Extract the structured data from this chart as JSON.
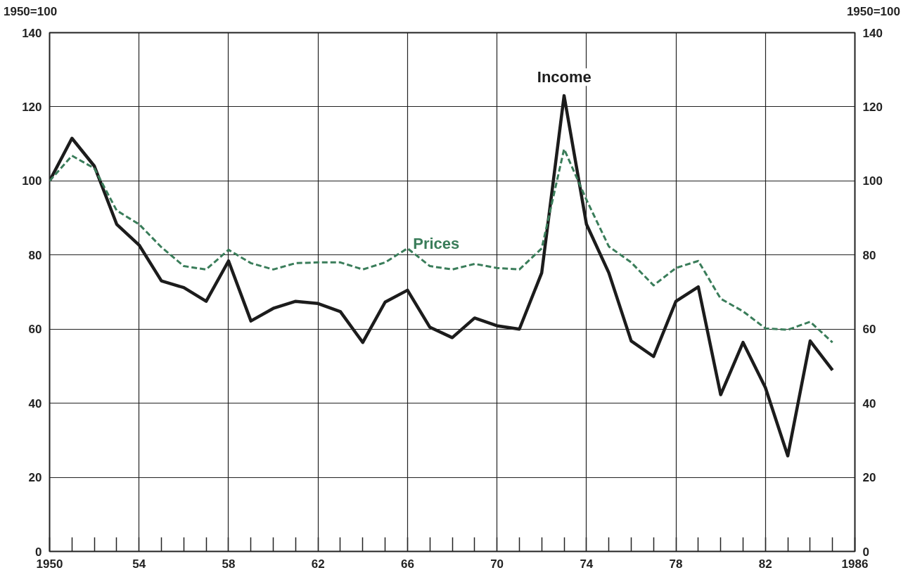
{
  "chart_data": {
    "type": "line",
    "ylabel": "1950=100",
    "y2label": "1950=100",
    "x": [
      1950,
      1951,
      1952,
      1953,
      1954,
      1955,
      1956,
      1957,
      1958,
      1959,
      1960,
      1961,
      1962,
      1963,
      1964,
      1965,
      1966,
      1967,
      1968,
      1969,
      1970,
      1971,
      1972,
      1973,
      1974,
      1975,
      1976,
      1977,
      1978,
      1979,
      1980,
      1981,
      1982,
      1983,
      1984,
      1985
    ],
    "series": [
      {
        "color": "#1c1c1c",
        "line_style": "solid",
        "values": [
          100,
          111.5,
          104,
          88.3,
          82.7,
          73,
          71.2,
          67.5,
          78.4,
          62.2,
          65.6,
          67.5,
          66.9,
          64.7,
          56.4,
          67.3,
          70.5,
          60.5,
          57.7,
          63,
          60.9,
          60,
          75.2,
          123,
          88.3,
          75.2,
          56.8,
          52.6,
          67.5,
          71.4,
          42.3,
          56.4,
          44.2,
          25.8,
          56.8,
          48.9
        ]
      },
      {
        "color": "#3a7d5a",
        "line_style": "dashed",
        "values": [
          100,
          106.8,
          103.4,
          92,
          88.3,
          82.1,
          77,
          76.1,
          81.4,
          77.8,
          76.1,
          77.8,
          78,
          78,
          76.1,
          78,
          81.8,
          77,
          76.1,
          77.6,
          76.5,
          76.1,
          81.8,
          108.6,
          94.9,
          82.3,
          78,
          71.8,
          76.5,
          78.4,
          68.2,
          64.8,
          60.2,
          59.8,
          62,
          56.4
        ]
      }
    ],
    "annotations": [
      "Income",
      "Prices"
    ],
    "xlim": [
      1950,
      1986
    ],
    "xticks": [
      {
        "value": 1950,
        "label": "1950"
      },
      {
        "value": 1954,
        "label": "54"
      },
      {
        "value": 1958,
        "label": "58"
      },
      {
        "value": 1962,
        "label": "62"
      },
      {
        "value": 1966,
        "label": "66"
      },
      {
        "value": 1970,
        "label": "70"
      },
      {
        "value": 1974,
        "label": "74"
      },
      {
        "value": 1978,
        "label": "78"
      },
      {
        "value": 1982,
        "label": "82"
      },
      {
        "value": 1986,
        "label": "1986"
      }
    ],
    "ylim": [
      0,
      140
    ],
    "yticks": [
      0,
      20,
      40,
      60,
      80,
      100,
      120,
      140
    ],
    "y2lim": [
      0,
      140
    ],
    "y2ticks": [
      0,
      20,
      40,
      60,
      80,
      100,
      120,
      140
    ],
    "grid": true
  }
}
